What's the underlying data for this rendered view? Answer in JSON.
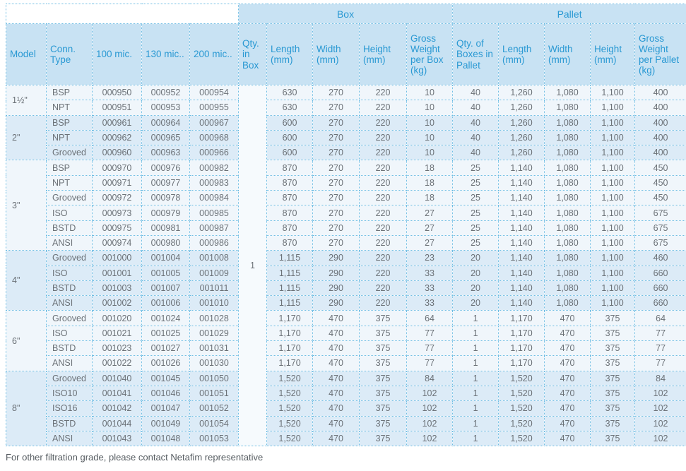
{
  "table": {
    "group_headers": {
      "box": "Box",
      "pallet": "Pallet"
    },
    "columns": [
      "Model",
      "Conn. Type",
      "100 mic.",
      "130 mic..",
      "200 mic..",
      "Qty. in Box",
      "Length (mm)",
      "Width (mm)",
      "Height (mm)",
      "Gross Weight per Box (kg)",
      "Qty. of Boxes in Pallet",
      "Length (mm)",
      "Width (mm)",
      "Height (mm)",
      "Gross Weight per Pallet (kg)"
    ],
    "qty_in_box": "1",
    "groups": [
      {
        "model": "1½\"",
        "shade": "light",
        "rows": [
          {
            "conn": "BSP",
            "m100": "000950",
            "m130": "000952",
            "m200": "000954",
            "box": [
              "630",
              "270",
              "220",
              "10"
            ],
            "pallet": [
              "40",
              "1,260",
              "1,080",
              "1,100",
              "400"
            ]
          },
          {
            "conn": "NPT",
            "m100": "000951",
            "m130": "000953",
            "m200": "000955",
            "box": [
              "630",
              "270",
              "220",
              "10"
            ],
            "pallet": [
              "40",
              "1,260",
              "1,080",
              "1,100",
              "400"
            ]
          }
        ]
      },
      {
        "model": "2\"",
        "shade": "blue",
        "rows": [
          {
            "conn": "BSP",
            "m100": "000961",
            "m130": "000964",
            "m200": "000967",
            "box": [
              "600",
              "270",
              "220",
              "10"
            ],
            "pallet": [
              "40",
              "1,260",
              "1,080",
              "1,100",
              "400"
            ]
          },
          {
            "conn": "NPT",
            "m100": "000962",
            "m130": "000965",
            "m200": "000968",
            "box": [
              "600",
              "270",
              "220",
              "10"
            ],
            "pallet": [
              "40",
              "1,260",
              "1,080",
              "1,100",
              "400"
            ]
          },
          {
            "conn": "Grooved",
            "m100": "000960",
            "m130": "000963",
            "m200": "000966",
            "box": [
              "600",
              "270",
              "220",
              "10"
            ],
            "pallet": [
              "40",
              "1,260",
              "1,080",
              "1,100",
              "400"
            ]
          }
        ]
      },
      {
        "model": "3\"",
        "shade": "light",
        "rows": [
          {
            "conn": "BSP",
            "m100": "000970",
            "m130": "000976",
            "m200": "000982",
            "box": [
              "870",
              "270",
              "220",
              "18"
            ],
            "pallet": [
              "25",
              "1,140",
              "1,080",
              "1,100",
              "450"
            ]
          },
          {
            "conn": "NPT",
            "m100": "000971",
            "m130": "000977",
            "m200": "000983",
            "box": [
              "870",
              "270",
              "220",
              "18"
            ],
            "pallet": [
              "25",
              "1,140",
              "1,080",
              "1,100",
              "450"
            ]
          },
          {
            "conn": "Grooved",
            "m100": "000972",
            "m130": "000978",
            "m200": "000984",
            "box": [
              "870",
              "270",
              "220",
              "18"
            ],
            "pallet": [
              "25",
              "1,140",
              "1,080",
              "1,100",
              "450"
            ]
          },
          {
            "conn": "ISO",
            "m100": "000973",
            "m130": "000979",
            "m200": "000985",
            "box": [
              "870",
              "270",
              "220",
              "27"
            ],
            "pallet": [
              "25",
              "1,140",
              "1,080",
              "1,100",
              "675"
            ]
          },
          {
            "conn": "BSTD",
            "m100": "000975",
            "m130": "000981",
            "m200": "000987",
            "box": [
              "870",
              "270",
              "220",
              "27"
            ],
            "pallet": [
              "25",
              "1,140",
              "1,080",
              "1,100",
              "675"
            ]
          },
          {
            "conn": "ANSI",
            "m100": "000974",
            "m130": "000980",
            "m200": "000986",
            "box": [
              "870",
              "270",
              "220",
              "27"
            ],
            "pallet": [
              "25",
              "1,140",
              "1,080",
              "1,100",
              "675"
            ]
          }
        ]
      },
      {
        "model": "4\"",
        "shade": "blue",
        "rows": [
          {
            "conn": "Grooved",
            "m100": "001000",
            "m130": "001004",
            "m200": "001008",
            "box": [
              "1,115",
              "290",
              "220",
              "23"
            ],
            "pallet": [
              "20",
              "1,140",
              "1,080",
              "1,100",
              "460"
            ]
          },
          {
            "conn": "ISO",
            "m100": "001001",
            "m130": "001005",
            "m200": "001009",
            "box": [
              "1,115",
              "290",
              "220",
              "33"
            ],
            "pallet": [
              "20",
              "1,140",
              "1,080",
              "1,100",
              "660"
            ]
          },
          {
            "conn": "BSTD",
            "m100": "001003",
            "m130": "001007",
            "m200": "001011",
            "box": [
              "1,115",
              "290",
              "220",
              "33"
            ],
            "pallet": [
              "20",
              "1,140",
              "1,080",
              "1,100",
              "660"
            ]
          },
          {
            "conn": "ANSI",
            "m100": "001002",
            "m130": "001006",
            "m200": "001010",
            "box": [
              "1,115",
              "290",
              "220",
              "33"
            ],
            "pallet": [
              "20",
              "1,140",
              "1,080",
              "1,100",
              "660"
            ]
          }
        ]
      },
      {
        "model": "6\"",
        "shade": "light",
        "rows": [
          {
            "conn": "Grooved",
            "m100": "001020",
            "m130": "001024",
            "m200": "001028",
            "box": [
              "1,170",
              "470",
              "375",
              "64"
            ],
            "pallet": [
              "1",
              "1,170",
              "470",
              "375",
              "64"
            ]
          },
          {
            "conn": "ISO",
            "m100": "001021",
            "m130": "001025",
            "m200": "001029",
            "box": [
              "1,170",
              "470",
              "375",
              "77"
            ],
            "pallet": [
              "1",
              "1,170",
              "470",
              "375",
              "77"
            ]
          },
          {
            "conn": "BSTD",
            "m100": "001023",
            "m130": "001027",
            "m200": "001031",
            "box": [
              "1,170",
              "470",
              "375",
              "77"
            ],
            "pallet": [
              "1",
              "1,170",
              "470",
              "375",
              "77"
            ]
          },
          {
            "conn": "ANSI",
            "m100": "001022",
            "m130": "001026",
            "m200": "001030",
            "box": [
              "1,170",
              "470",
              "375",
              "77"
            ],
            "pallet": [
              "1",
              "1,170",
              "470",
              "375",
              "77"
            ]
          }
        ]
      },
      {
        "model": "8\"",
        "shade": "blue",
        "rows": [
          {
            "conn": "Grooved",
            "m100": "001040",
            "m130": "001045",
            "m200": "001050",
            "box": [
              "1,520",
              "470",
              "375",
              "84"
            ],
            "pallet": [
              "1",
              "1,520",
              "470",
              "375",
              "84"
            ]
          },
          {
            "conn": "ISO10",
            "m100": "001041",
            "m130": "001046",
            "m200": "001051",
            "box": [
              "1,520",
              "470",
              "375",
              "102"
            ],
            "pallet": [
              "1",
              "1,520",
              "470",
              "375",
              "102"
            ]
          },
          {
            "conn": "ISO16",
            "m100": "001042",
            "m130": "001047",
            "m200": "001052",
            "box": [
              "1,520",
              "470",
              "375",
              "102"
            ],
            "pallet": [
              "1",
              "1,520",
              "470",
              "375",
              "102"
            ]
          },
          {
            "conn": "BSTD",
            "m100": "001044",
            "m130": "001049",
            "m200": "001054",
            "box": [
              "1,520",
              "470",
              "375",
              "102"
            ],
            "pallet": [
              "1",
              "1,520",
              "470",
              "375",
              "102"
            ]
          },
          {
            "conn": "ANSI",
            "m100": "001043",
            "m130": "001048",
            "m200": "001053",
            "box": [
              "1,520",
              "470",
              "375",
              "102"
            ],
            "pallet": [
              "1",
              "1,520",
              "470",
              "375",
              "102"
            ]
          }
        ]
      }
    ]
  },
  "footer": {
    "note": "For other filtration grade, please contact Netafim representative"
  }
}
